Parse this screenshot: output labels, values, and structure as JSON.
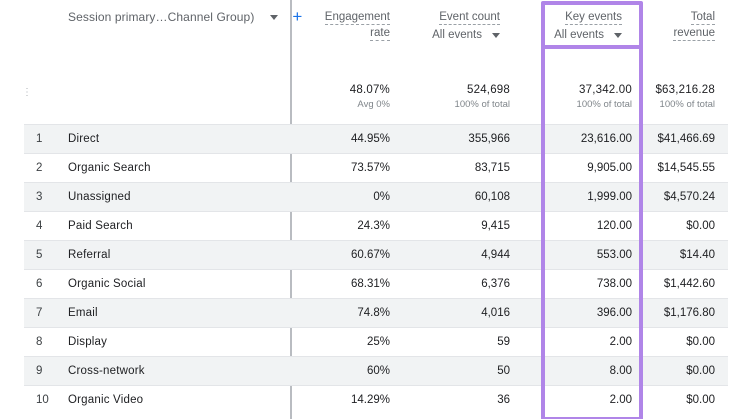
{
  "header": {
    "dimension_label": "Session primary…Channel Group)",
    "add_icon": "plus-icon",
    "columns": [
      {
        "title": "Engagement",
        "title2": "rate",
        "sub": ""
      },
      {
        "title": "Event count",
        "title2": "",
        "sub": "All events"
      },
      {
        "title": "Key events",
        "title2": "",
        "sub": "All events"
      },
      {
        "title": "Total",
        "title2": "revenue",
        "sub": ""
      }
    ]
  },
  "totals": {
    "engagement": {
      "value": "48.07%",
      "sub": "Avg 0%"
    },
    "events": {
      "value": "524,698",
      "sub": "100% of total"
    },
    "key": {
      "value": "37,342.00",
      "sub": "100% of total"
    },
    "revenue": {
      "value": "$63,216.28",
      "sub": "100% of total"
    }
  },
  "rows": [
    {
      "idx": "1",
      "name": "Direct",
      "engagement": "44.95%",
      "events": "355,966",
      "key": "23,616.00",
      "revenue": "$41,466.69"
    },
    {
      "idx": "2",
      "name": "Organic Search",
      "engagement": "73.57%",
      "events": "83,715",
      "key": "9,905.00",
      "revenue": "$14,545.55"
    },
    {
      "idx": "3",
      "name": "Unassigned",
      "engagement": "0%",
      "events": "60,108",
      "key": "1,999.00",
      "revenue": "$4,570.24"
    },
    {
      "idx": "4",
      "name": "Paid Search",
      "engagement": "24.3%",
      "events": "9,415",
      "key": "120.00",
      "revenue": "$0.00"
    },
    {
      "idx": "5",
      "name": "Referral",
      "engagement": "60.67%",
      "events": "4,944",
      "key": "553.00",
      "revenue": "$14.40"
    },
    {
      "idx": "6",
      "name": "Organic Social",
      "engagement": "68.31%",
      "events": "6,376",
      "key": "738.00",
      "revenue": "$1,442.60"
    },
    {
      "idx": "7",
      "name": "Email",
      "engagement": "74.8%",
      "events": "4,016",
      "key": "396.00",
      "revenue": "$1,176.80"
    },
    {
      "idx": "8",
      "name": "Display",
      "engagement": "25%",
      "events": "59",
      "key": "2.00",
      "revenue": "$0.00"
    },
    {
      "idx": "9",
      "name": "Cross-network",
      "engagement": "60%",
      "events": "50",
      "key": "8.00",
      "revenue": "$0.00"
    },
    {
      "idx": "10",
      "name": "Organic Video",
      "engagement": "14.29%",
      "events": "36",
      "key": "2.00",
      "revenue": "$0.00"
    }
  ],
  "colors": {
    "highlight": "#b085e8",
    "accent": "#1a73e8",
    "stripe": "#f1f3f4"
  }
}
